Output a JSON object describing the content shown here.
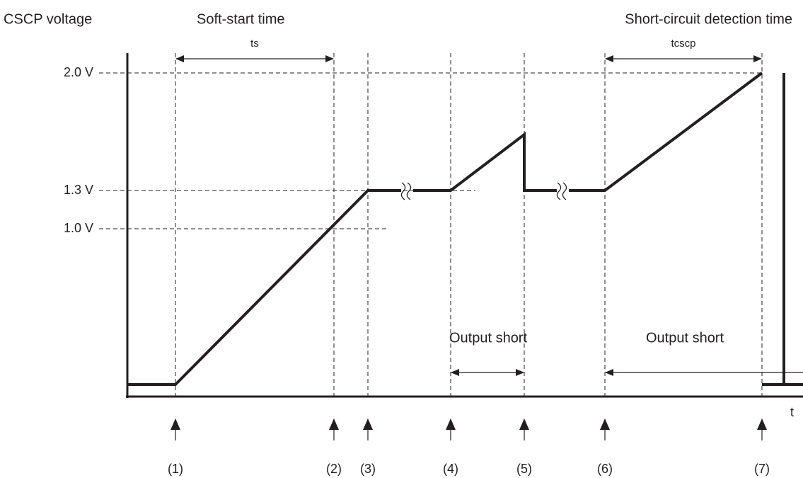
{
  "header": {
    "y_axis_label": "CSCP voltage",
    "soft_start_label": "Soft-start time",
    "detection_label": "Short-circuit detection time"
  },
  "intervals": {
    "ts": "ts",
    "tcscp": "tcscp"
  },
  "levels": [
    "2.0 V",
    "1.3 V",
    "1.0 V"
  ],
  "output_short": [
    "Output short",
    "Output short"
  ],
  "x_axis_label": "t",
  "points": [
    "(1)",
    "(2)",
    "(3)",
    "(4)",
    "(5)",
    "(6)",
    "(7)"
  ]
}
